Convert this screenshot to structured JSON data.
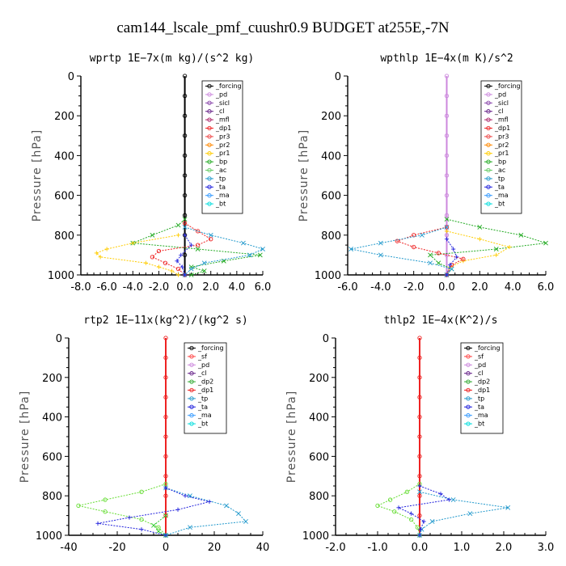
{
  "title": "cam144_lscale_pmf_cuushr0.9  BUDGET at255E,-7N",
  "chart_data": [
    {
      "type": "line",
      "id": "wprtp",
      "title": "wprtp  1E−7x(m kg)/(s^2 kg)",
      "ylabel": "Pressure [hPa]",
      "xlim": [
        -8,
        6
      ],
      "ylim": [
        1000,
        0
      ],
      "xticks": [
        -8,
        -6,
        -4,
        -2,
        0,
        2,
        4,
        6
      ],
      "xtick_labels": [
        "-8.0",
        "-6.0",
        "-4.0",
        "-2.0",
        "0.0",
        "2.0",
        "4.0",
        "6.0"
      ],
      "yticks": [
        0,
        200,
        400,
        600,
        800,
        1000
      ],
      "ytick_labels": [
        "0",
        "200",
        "400",
        "600",
        "800",
        "1000"
      ],
      "legend": [
        "_forcing",
        "_pd",
        "_sicl",
        "_cl",
        "_mfl",
        "_dp1",
        "_pr3",
        "_pr2",
        "_pr1",
        "_bp",
        "_ac",
        "_tp",
        "_ta",
        "_ma",
        "_bt"
      ],
      "series": [
        {
          "name": "_forcing",
          "color": "#000000",
          "marker": "o",
          "y": [
            0,
            100,
            200,
            300,
            400,
            500,
            600,
            700,
            800,
            900,
            1000
          ],
          "x": [
            0,
            0,
            0,
            0,
            0,
            0,
            0,
            0,
            0,
            0,
            0
          ]
        },
        {
          "name": "_bp",
          "color": "#22aa22",
          "marker": "x",
          "y": [
            720,
            750,
            800,
            840,
            870,
            900,
            930,
            960,
            980,
            1000
          ],
          "x": [
            0,
            -0.5,
            -2.5,
            -4,
            1,
            5.8,
            3,
            0.5,
            1.5,
            0.5
          ]
        },
        {
          "name": "_pr1",
          "color": "#ffcc00",
          "marker": "+",
          "y": [
            800,
            840,
            870,
            890,
            910,
            940,
            960,
            980,
            1000
          ],
          "x": [
            -0.5,
            -4,
            -6,
            -6.8,
            -6.5,
            -3,
            -2,
            -1,
            -0.5
          ]
        },
        {
          "name": "_dp1",
          "color": "#ee2222",
          "marker": "o",
          "y": [
            740,
            780,
            820,
            850,
            880,
            910,
            940,
            970,
            1000
          ],
          "x": [
            0,
            1,
            2,
            1,
            -2,
            -2.5,
            -1.5,
            -0.5,
            0
          ]
        },
        {
          "name": "_tp",
          "color": "#2299cc",
          "marker": "x",
          "y": [
            760,
            800,
            840,
            870,
            900,
            940,
            970,
            1000
          ],
          "x": [
            0,
            2,
            4.5,
            6,
            5,
            1.5,
            0.5,
            0
          ]
        },
        {
          "name": "_ta",
          "color": "#2222dd",
          "marker": "+",
          "y": [
            800,
            850,
            900,
            930,
            960,
            1000
          ],
          "x": [
            0,
            0.5,
            -0.3,
            -0.6,
            -0.2,
            0
          ]
        }
      ]
    },
    {
      "type": "line",
      "id": "wpthlp",
      "title": "wpthlp  1E−4x(m K)/s^2",
      "ylabel": "Pressure [hPa]",
      "xlim": [
        -6,
        6
      ],
      "ylim": [
        1000,
        0
      ],
      "xticks": [
        -6,
        -4,
        -2,
        0,
        2,
        4,
        6
      ],
      "xtick_labels": [
        "-6.0",
        "-4.0",
        "-2.0",
        "0.0",
        "2.0",
        "4.0",
        "6.0"
      ],
      "yticks": [
        0,
        200,
        400,
        600,
        800,
        1000
      ],
      "ytick_labels": [
        "0",
        "200",
        "400",
        "600",
        "800",
        "1000"
      ],
      "legend": [
        "_forcing",
        "_pd",
        "_sicl",
        "_cl",
        "_mfl",
        "_dp1",
        "_pr3",
        "_pr2",
        "_pr1",
        "_bp",
        "_ac",
        "_tp",
        "_ta",
        "_ma",
        "_bt"
      ],
      "series": [
        {
          "name": "_forcing",
          "color": "#cc88dd",
          "marker": "o",
          "y": [
            0,
            100,
            200,
            300,
            400,
            500,
            600,
            700,
            800,
            900,
            1000
          ],
          "x": [
            0,
            0,
            0,
            0,
            0,
            0,
            0,
            0,
            0,
            0,
            0
          ]
        },
        {
          "name": "_bp",
          "color": "#22aa22",
          "marker": "x",
          "y": [
            720,
            760,
            800,
            840,
            870,
            900,
            940,
            970,
            1000
          ],
          "x": [
            0,
            2,
            4.5,
            6,
            3,
            -1,
            -0.5,
            0.3,
            0
          ]
        },
        {
          "name": "_pr1",
          "color": "#ffcc00",
          "marker": "+",
          "y": [
            780,
            820,
            860,
            900,
            930,
            960,
            1000
          ],
          "x": [
            0,
            2,
            3.8,
            3,
            1,
            0.2,
            0
          ]
        },
        {
          "name": "_dp1",
          "color": "#ee2222",
          "marker": "o",
          "y": [
            760,
            800,
            830,
            860,
            890,
            920,
            950,
            1000
          ],
          "x": [
            0,
            -2,
            -3,
            -2,
            -0.5,
            1,
            0.3,
            0
          ]
        },
        {
          "name": "_tp",
          "color": "#2299cc",
          "marker": "x",
          "y": [
            760,
            800,
            840,
            870,
            900,
            940,
            970,
            1000
          ],
          "x": [
            0,
            -1.5,
            -4,
            -5.8,
            -4,
            -1,
            0.3,
            0
          ]
        },
        {
          "name": "_ta",
          "color": "#2222dd",
          "marker": "+",
          "y": [
            820,
            870,
            910,
            950,
            1000
          ],
          "x": [
            0,
            0.4,
            0.6,
            0.2,
            0
          ]
        }
      ]
    },
    {
      "type": "line",
      "id": "rtp2",
      "title": "rtp2  1E−11x(kg^2)/(kg^2 s)",
      "ylabel": "Pressure [hPa]",
      "xlim": [
        -40,
        40
      ],
      "ylim": [
        1000,
        0
      ],
      "xticks": [
        -40,
        -20,
        0,
        20,
        40
      ],
      "xtick_labels": [
        "-40",
        "-20",
        "0",
        "20",
        "40"
      ],
      "yticks": [
        0,
        200,
        400,
        600,
        800,
        1000
      ],
      "ytick_labels": [
        "0",
        "200",
        "400",
        "600",
        "800",
        "1000"
      ],
      "legend": [
        "_forcing",
        "_sf",
        "_pd",
        "_cl",
        "_dp2",
        "_dp1",
        "_tp",
        "_ta",
        "_ma",
        "_bt"
      ],
      "series": [
        {
          "name": "_forcing",
          "color": "#ee2222",
          "marker": "o",
          "y": [
            0,
            100,
            200,
            300,
            400,
            500,
            600,
            700,
            800,
            900,
            1000
          ],
          "x": [
            0,
            0,
            0,
            0,
            0,
            0,
            0,
            0,
            0,
            0,
            0
          ]
        },
        {
          "name": "_dp2",
          "color": "#66dd33",
          "marker": "o",
          "y": [
            740,
            780,
            820,
            850,
            880,
            920,
            960,
            1000
          ],
          "x": [
            0,
            -10,
            -25,
            -36,
            -25,
            -10,
            -3,
            0
          ]
        },
        {
          "name": "_dp1",
          "color": "#33cc33",
          "marker": "x",
          "y": [
            900,
            950,
            980,
            1000
          ],
          "x": [
            0,
            -5,
            -3,
            0
          ]
        },
        {
          "name": "_tp",
          "color": "#2299cc",
          "marker": "x",
          "y": [
            760,
            800,
            850,
            890,
            930,
            960,
            1000
          ],
          "x": [
            0,
            10,
            25,
            30,
            33,
            10,
            0
          ]
        },
        {
          "name": "_ta",
          "color": "#2222dd",
          "marker": "+",
          "y": [
            760,
            800,
            830,
            870,
            910,
            940,
            970,
            1000
          ],
          "x": [
            0,
            8,
            18,
            5,
            -15,
            -28,
            -10,
            0
          ]
        }
      ]
    },
    {
      "type": "line",
      "id": "thlp2",
      "title": "thlp2  1E−4x(K^2)/s",
      "ylabel": "Pressure [hPa]",
      "xlim": [
        -2,
        3
      ],
      "ylim": [
        1000,
        0
      ],
      "xticks": [
        -2,
        -1,
        0,
        1,
        2,
        3
      ],
      "xtick_labels": [
        "-2.0",
        "-1.0",
        "0.0",
        "1.0",
        "2.0",
        "3.0"
      ],
      "yticks": [
        0,
        200,
        400,
        600,
        800,
        1000
      ],
      "ytick_labels": [
        "0",
        "200",
        "400",
        "600",
        "800",
        "1000"
      ],
      "legend": [
        "_forcing",
        "_sf",
        "_pd",
        "_cl",
        "_dp2",
        "_dp1",
        "_tp",
        "_ta",
        "_ma",
        "_bt"
      ],
      "series": [
        {
          "name": "_forcing",
          "color": "#ee2222",
          "marker": "o",
          "y": [
            0,
            100,
            200,
            300,
            400,
            500,
            600,
            700,
            800,
            900,
            1000
          ],
          "x": [
            0,
            0,
            0,
            0,
            0,
            0,
            0,
            0,
            0,
            0,
            0
          ]
        },
        {
          "name": "_dp2",
          "color": "#66dd33",
          "marker": "o",
          "y": [
            740,
            780,
            820,
            850,
            880,
            920,
            960,
            1000
          ],
          "x": [
            0,
            -0.3,
            -0.7,
            -1.0,
            -0.6,
            -0.2,
            -0.05,
            0
          ]
        },
        {
          "name": "_tp",
          "color": "#2299cc",
          "marker": "x",
          "y": [
            780,
            820,
            860,
            890,
            930,
            970,
            1000
          ],
          "x": [
            0,
            0.8,
            2.1,
            1.2,
            0.3,
            0.05,
            0
          ]
        },
        {
          "name": "_ta",
          "color": "#2222dd",
          "marker": "+",
          "y": [
            750,
            790,
            820,
            860,
            890,
            930,
            970,
            1000
          ],
          "x": [
            0,
            0.5,
            0.7,
            -0.5,
            -0.2,
            0.1,
            0.02,
            0
          ]
        }
      ]
    }
  ]
}
